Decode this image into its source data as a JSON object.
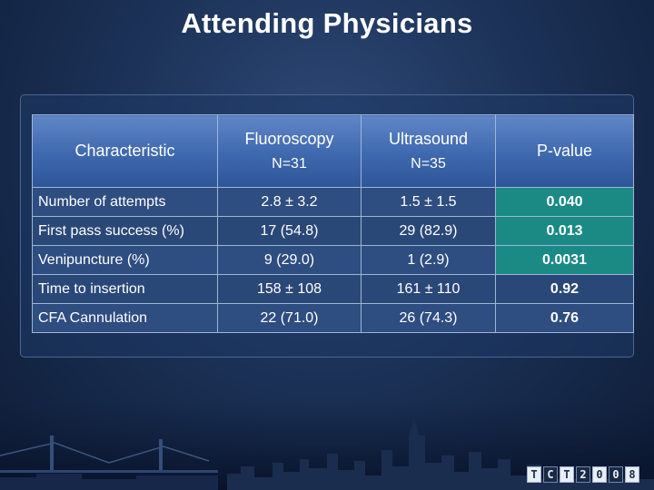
{
  "title": "Attending Physicians",
  "table": {
    "headers": [
      {
        "label": "Characteristic",
        "sub": ""
      },
      {
        "label": "Fluoroscopy",
        "sub": "N=31"
      },
      {
        "label": "Ultrasound",
        "sub": "N=35"
      },
      {
        "label": "P-value",
        "sub": ""
      }
    ],
    "rows": [
      {
        "characteristic": "Number of attempts",
        "fluoroscopy": "2.8 ±  3.2",
        "ultrasound": "1.5 ± 1.5",
        "pvalue": "0.040",
        "significant": true
      },
      {
        "characteristic": "First pass success (%)",
        "fluoroscopy": "17 (54.8)",
        "ultrasound": "29 (82.9)",
        "pvalue": "0.013",
        "significant": true
      },
      {
        "characteristic": "Venipuncture (%)",
        "fluoroscopy": "9 (29.0)",
        "ultrasound": "1 (2.9)",
        "pvalue": "0.0031",
        "significant": true
      },
      {
        "characteristic": "Time to insertion",
        "fluoroscopy": "158 ± 108",
        "ultrasound": "161 ± 110",
        "pvalue": "0.92",
        "significant": false
      },
      {
        "characteristic": "CFA Cannulation",
        "fluoroscopy": "22 (71.0)",
        "ultrasound": "26 (74.3)",
        "pvalue": "0.76",
        "significant": false
      }
    ]
  },
  "logo": {
    "chars": [
      "T",
      "C",
      "T",
      "2",
      "0",
      "0",
      "8"
    ]
  },
  "colors": {
    "significant_cell": "#1b8a85",
    "header": "#3e68ae",
    "row": "#2e4d80"
  }
}
